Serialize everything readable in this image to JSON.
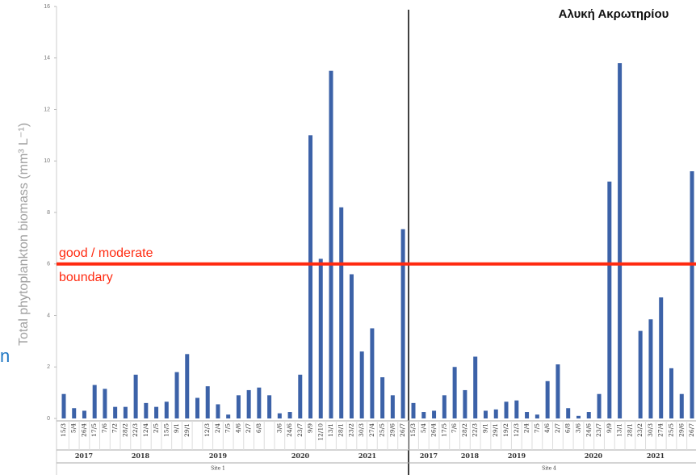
{
  "chart_data": {
    "type": "bar",
    "title": "Αλυκή Ακρωτηρίου",
    "y_label": "Total phytoplankton biomass (mm³ L⁻¹)",
    "side_fragment": "n",
    "threshold": 6,
    "threshold_label": [
      "good / moderate",
      "boundary"
    ],
    "threshold_color": "#ff2a10",
    "color": "#3c62a8",
    "ylim": [
      0,
      16
    ],
    "yticks": [
      0,
      2,
      4,
      6,
      8,
      10,
      12,
      14,
      16
    ],
    "panels": [
      {
        "name": "Site 1",
        "years": [
          "2017",
          "2018",
          "2019",
          "2020",
          "2021"
        ],
        "categories": [
          "15/3",
          "5/4",
          "26/4",
          "17/5",
          "7/6",
          "7/2",
          "28/2",
          "22/3",
          "12/4",
          "2/5",
          "15/5",
          "9/1",
          "29/1",
          null,
          "12/3",
          "2/4",
          "7/5",
          "4/6",
          "2/7",
          "6/8",
          null,
          "3/6",
          "24/6",
          "23/7",
          "9/9",
          "12/10",
          "13/1",
          "28/1",
          "23/2",
          "30/3",
          "27/4",
          "25/5",
          "29/6",
          "26/7"
        ],
        "values": [
          0.95,
          0.4,
          0.3,
          1.3,
          1.15,
          0.45,
          0.45,
          1.7,
          0.6,
          0.45,
          0.65,
          1.8,
          2.5,
          0.8,
          1.25,
          0.55,
          0.15,
          0.9,
          1.1,
          1.2,
          0.9,
          0.2,
          0.25,
          1.7,
          11,
          6.2,
          13.5,
          8.2,
          5.6,
          2.6,
          3.5,
          1.6,
          0.9,
          7.35
        ]
      },
      {
        "name": "Site 4",
        "years": [
          "2017",
          "2018",
          "2019",
          "2020",
          "2021"
        ],
        "categories": [
          "15/3",
          "5/4",
          "26/4",
          "17/5",
          "7/6",
          "28/2",
          "22/3",
          "9/1",
          "29/1",
          "19/2",
          "12/3",
          "2/4",
          "7/5",
          "4/6",
          "2/7",
          "6/8",
          "3/6",
          "24/6",
          "23/7",
          "9/9",
          "13/1",
          "28/1",
          "23/2",
          "30/3",
          "27/4",
          "25/5",
          "29/6",
          "26/7"
        ],
        "values": [
          0.6,
          0.25,
          0.3,
          0.9,
          2.0,
          1.1,
          2.4,
          0.3,
          0.35,
          0.65,
          0.7,
          0.25,
          0.15,
          1.45,
          2.1,
          0.4,
          0.1,
          0.25,
          0.95,
          9.2,
          13.8,
          0,
          3.4,
          3.85,
          4.7,
          1.95,
          0.95,
          9.6
        ]
      }
    ]
  }
}
